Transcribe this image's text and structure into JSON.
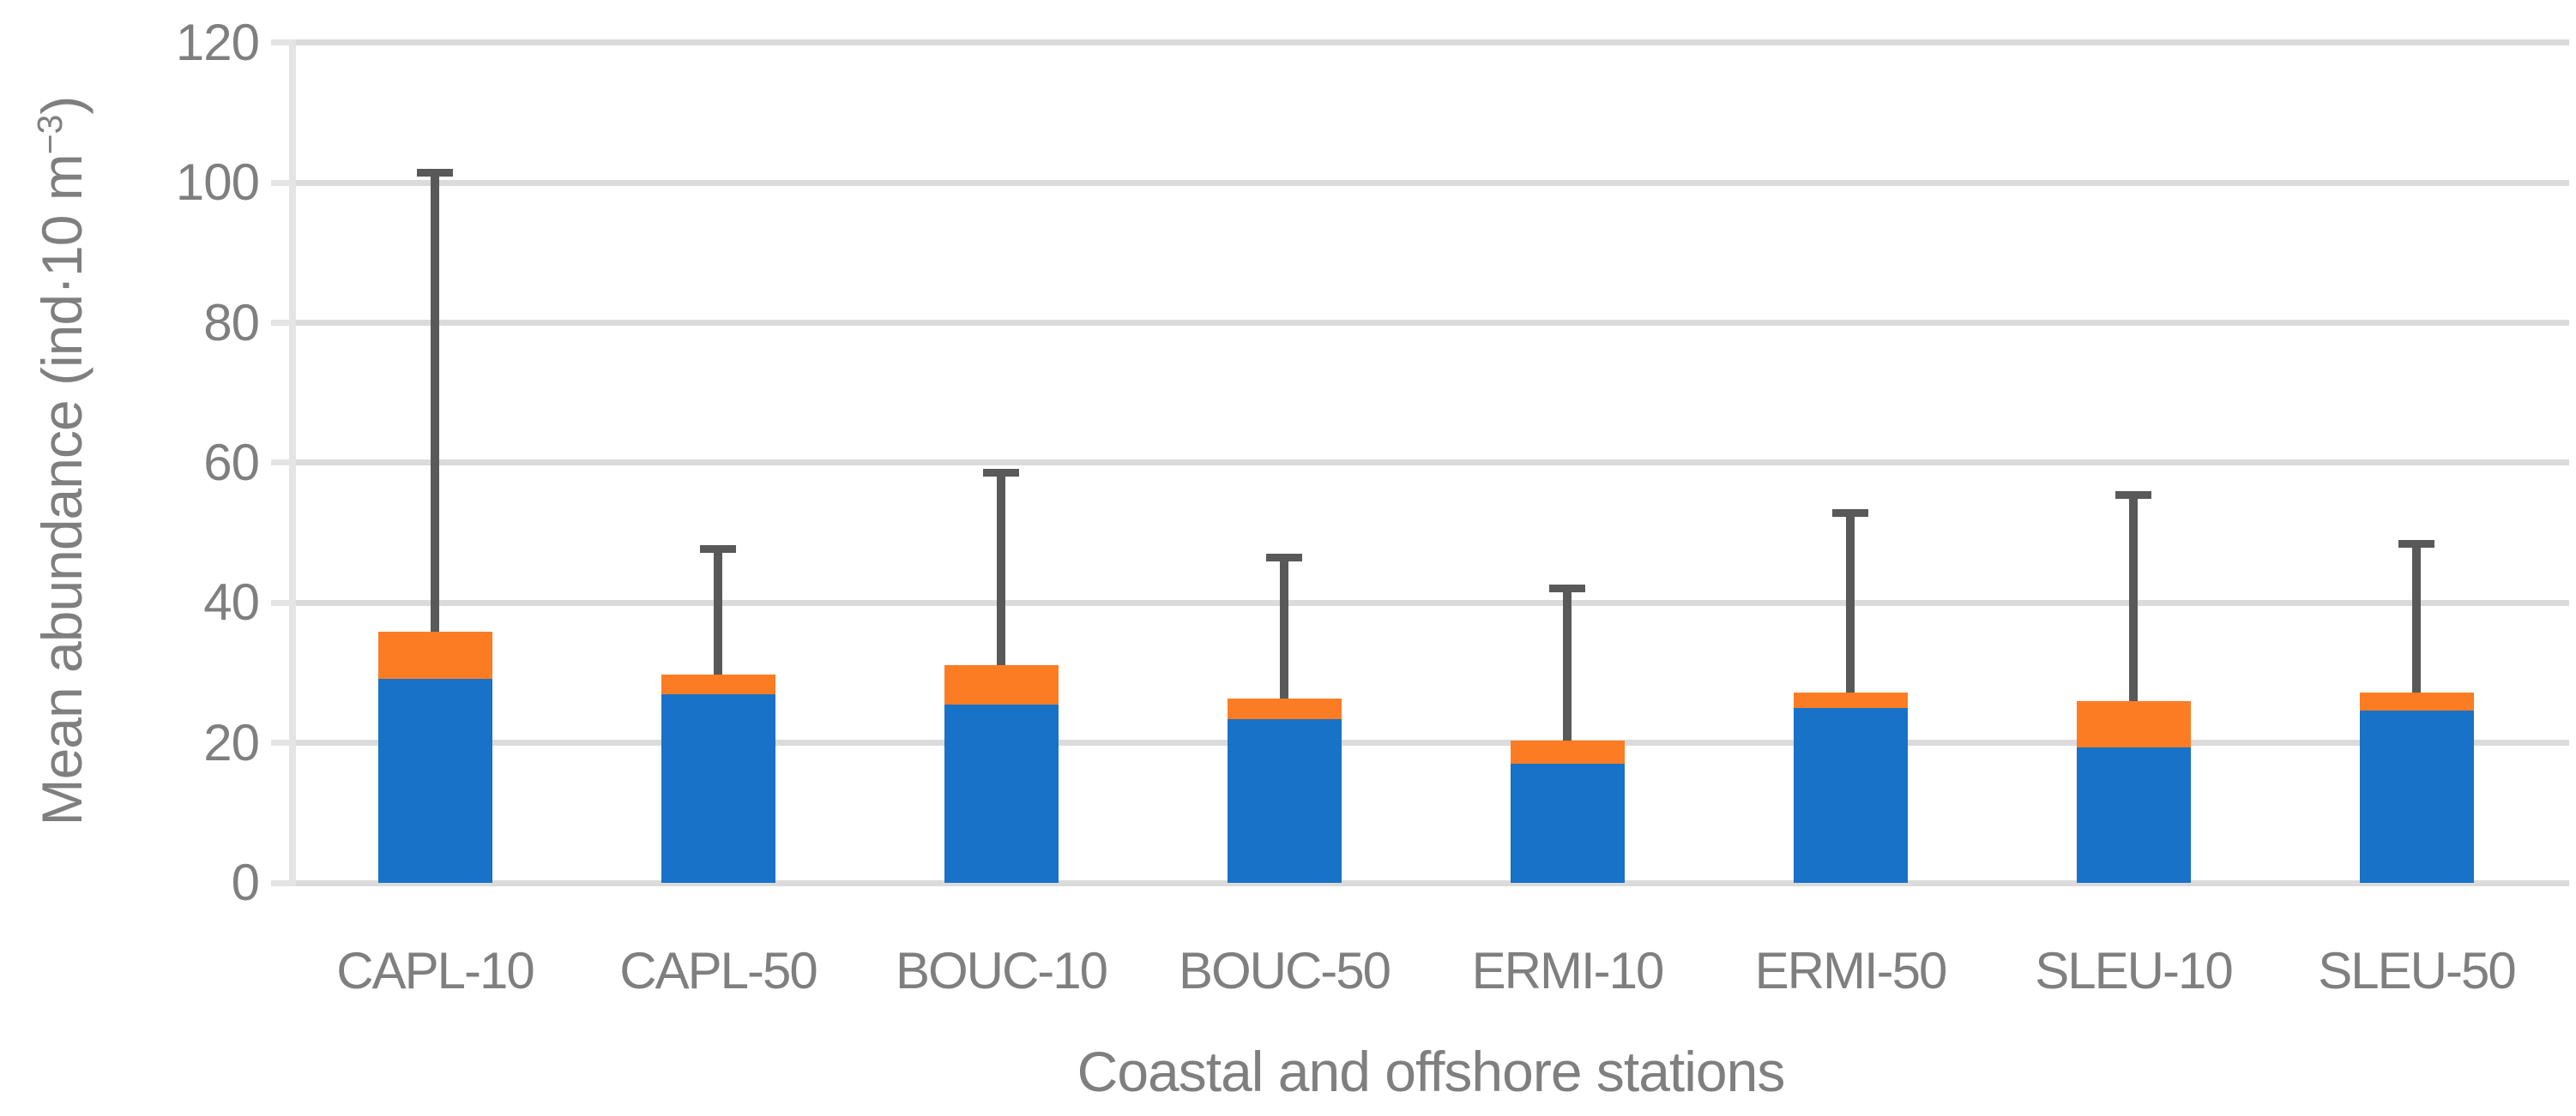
{
  "chart_data": {
    "type": "bar",
    "stacked": true,
    "title": "",
    "xlabel": "Coastal and offshore stations",
    "ylabel": "Mean abundance (ind·10 m⁻³)",
    "ylabel_parts": {
      "main": "Mean abundance (ind·10 m",
      "sup": "−3",
      "close": ")"
    },
    "categories": [
      "CAPL-10",
      "CAPL-50",
      "BOUC-10",
      "BOUC-50",
      "ERMI-10",
      "ERMI-50",
      "SLEU-10",
      "SLEU-50"
    ],
    "series": [
      {
        "name": "lower-segment-blue",
        "color": "#1772C8",
        "values": [
          29.2,
          26.9,
          25.5,
          23.4,
          17.0,
          25.0,
          19.3,
          24.6
        ]
      },
      {
        "name": "upper-segment-orange",
        "color": "#FC7C24",
        "values": [
          6.7,
          2.8,
          5.6,
          2.9,
          3.3,
          2.2,
          6.7,
          2.6
        ]
      }
    ],
    "stack_totals": [
      35.9,
      29.7,
      31.1,
      26.3,
      20.3,
      27.2,
      26.0,
      27.2
    ],
    "error_bar_tops": [
      101.5,
      47.7,
      58.6,
      46.5,
      42.0,
      52.8,
      55.4,
      48.4
    ],
    "error_bar_lengths": [
      65.6,
      18.0,
      27.5,
      20.2,
      21.7,
      25.6,
      29.4,
      21.2
    ],
    "y_ticks": [
      0,
      20,
      40,
      60,
      80,
      100,
      120
    ],
    "ylim": [
      0,
      120
    ],
    "grid": "horizontal-only",
    "legend": "none",
    "error_bar_color": "#595959",
    "gridline_color": "#DBDBDB",
    "axis_line_color": "#E4E4E4",
    "label_color": "#7F7F7F"
  }
}
